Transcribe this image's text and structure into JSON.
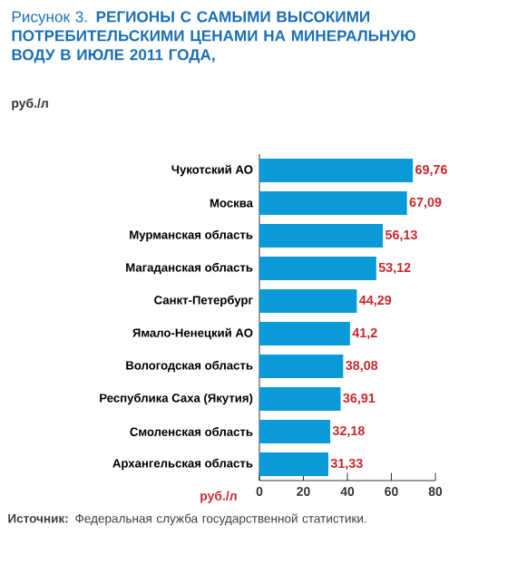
{
  "chart_data": {
    "type": "bar",
    "orientation": "horizontal",
    "title": "Рисунок 3. **РЕГИОНЫ С САМЫМИ ВЫСОКИМИ ПОТРЕБИТЕЛЬСКИМИ ЦЕНАМИ НА МИНЕРАЛЬНУЮ ВОДУ В ИЮЛЕ 2011 ГОДА,**",
    "subtitle": "руб./л",
    "xlabel": "руб./л",
    "categories": [
      "Чукотский АО",
      "Москва",
      "Мурманская область",
      "Магаданская область",
      "Санкт-Петербург",
      "Ямало-Ненецкий АО",
      "Вологодская область",
      "Республика Саха (Якутия)",
      "Смоленская область",
      "Архангельская область"
    ],
    "values": [
      69.76,
      67.09,
      56.13,
      53.12,
      44.29,
      41.2,
      38.08,
      36.91,
      32.18,
      31.33
    ],
    "value_labels": [
      "69,76",
      "67,09",
      "56,13",
      "53,12",
      "44,29",
      "41,2",
      "38,08",
      "36,91",
      "32,18",
      "31,33"
    ],
    "color": "#0a9ad8",
    "xlim": [
      0,
      80
    ],
    "xticks": [
      0,
      20,
      40,
      60,
      80
    ],
    "annotations": [
      "**Источник:** Федеральная служба государственной статистики."
    ]
  }
}
